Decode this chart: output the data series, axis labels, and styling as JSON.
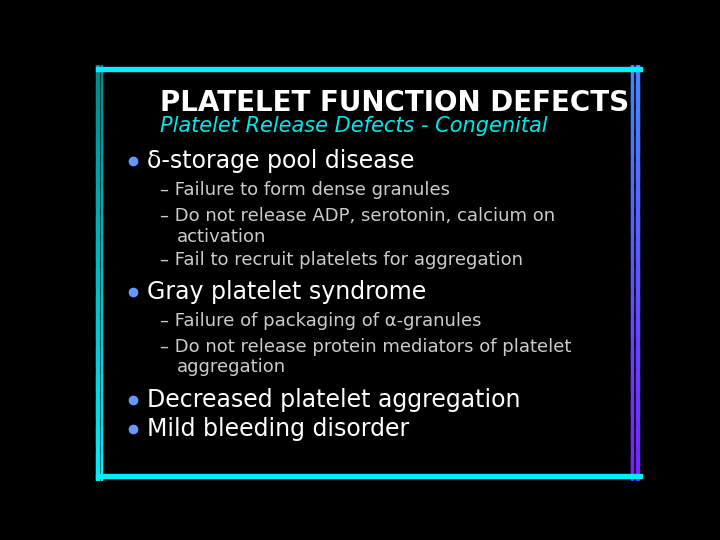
{
  "title": "PLATELET FUNCTION DEFECTS",
  "subtitle": "Platelet Release Defects - Congenital",
  "background_color": "#000000",
  "title_color": "#ffffff",
  "subtitle_color": "#00e8e8",
  "bullet_color": "#6699ff",
  "bullet1_text": "δ-storage pool disease",
  "bullet1_sub1": "Failure to form dense granules",
  "bullet1_sub2a": "Do not release ADP, serotonin, calcium on",
  "bullet1_sub2b": "    activation",
  "bullet1_sub3": "Fail to recruit platelets for aggregation",
  "bullet2_text": "Gray platelet syndrome",
  "bullet2_sub1": "Failure of packaging of α-granules",
  "bullet2_sub2a": "Do not release protein mediators of platelet",
  "bullet2_sub2b": "    aggregation",
  "bullet3_text": "Decreased platelet aggregation",
  "bullet4_text": "Mild bleeding disorder",
  "text_color": "#ffffff",
  "sub_text_color": "#cccccc",
  "title_fontsize": 20,
  "subtitle_fontsize": 15,
  "bullet_fontsize": 17,
  "sub_fontsize": 13
}
